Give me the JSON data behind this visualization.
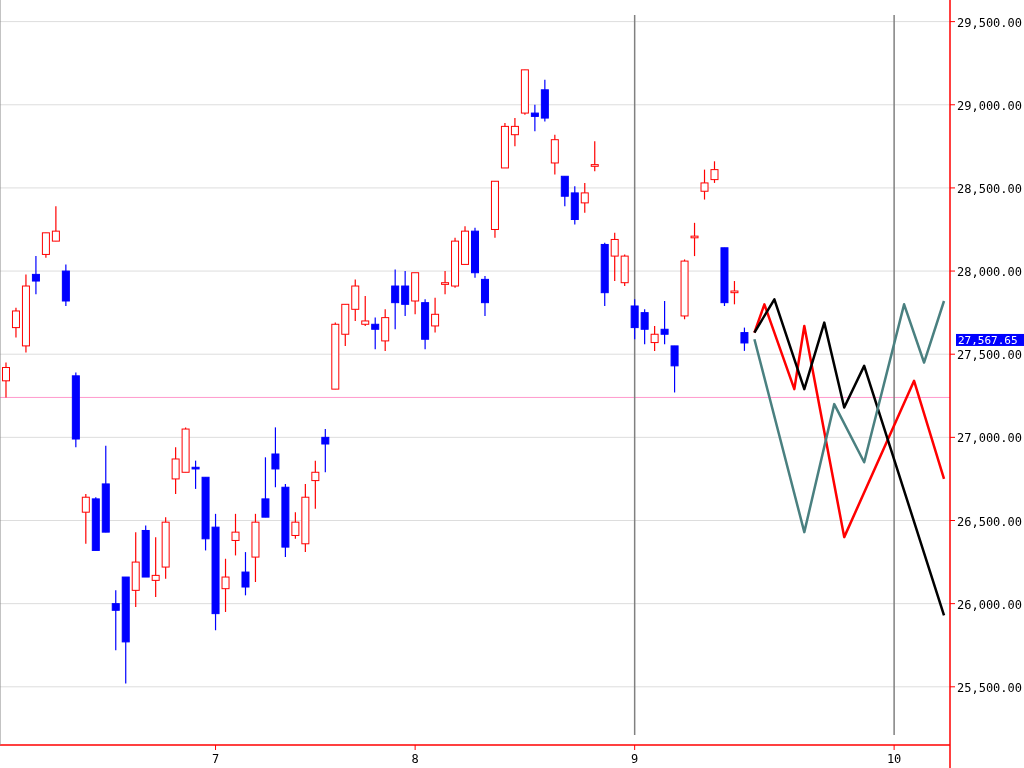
{
  "chart_data": {
    "type": "candlestick",
    "categories": [
      null,
      null,
      null,
      null,
      null,
      null,
      null,
      null,
      null,
      null,
      null,
      null,
      null,
      null,
      null,
      null,
      null,
      null,
      null,
      null,
      null,
      "7",
      null,
      null,
      null,
      null,
      null,
      null,
      null,
      null,
      null,
      null,
      null,
      null,
      null,
      null,
      null,
      null,
      null,
      null,
      null,
      "8",
      null,
      null,
      null,
      null,
      null,
      null,
      null,
      null,
      null,
      null,
      null,
      null,
      null,
      null,
      null,
      null,
      null,
      null,
      null,
      null,
      null,
      "9",
      null,
      null,
      null,
      null,
      null,
      null,
      null,
      null,
      null,
      null,
      null,
      null,
      null,
      null,
      null,
      null,
      null,
      null,
      null,
      null,
      null,
      null,
      null,
      null,
      null,
      "10",
      null,
      null,
      null,
      null,
      null
    ],
    "ohlc": [
      [
        27340,
        27450,
        27240,
        27420
      ],
      [
        27660,
        27780,
        27600,
        27760
      ],
      [
        27550,
        27980,
        27510,
        27910
      ],
      [
        27980,
        28090,
        27860,
        27940
      ],
      [
        28100,
        28230,
        28080,
        28230
      ],
      [
        28180,
        28390,
        28180,
        28240
      ],
      [
        28000,
        28040,
        27790,
        27820
      ],
      [
        27370,
        27390,
        26940,
        26990
      ],
      [
        26550,
        26660,
        26360,
        26640
      ],
      [
        26630,
        26640,
        26320,
        26320
      ],
      [
        26720,
        26950,
        26430,
        26430
      ],
      [
        26000,
        26080,
        25720,
        25960
      ],
      [
        26160,
        26160,
        25520,
        25770
      ],
      [
        26080,
        26430,
        25980,
        26250
      ],
      [
        26440,
        26470,
        26160,
        26160
      ],
      [
        26140,
        26400,
        26040,
        26170
      ],
      [
        26220,
        26520,
        26150,
        26490
      ],
      [
        26750,
        26940,
        26660,
        26870
      ],
      [
        26790,
        27060,
        26790,
        27050
      ],
      [
        26820,
        26860,
        26690,
        26810
      ],
      [
        26760,
        26760,
        26320,
        26390
      ],
      [
        26460,
        26540,
        25840,
        25940
      ],
      [
        26090,
        26270,
        25950,
        26160
      ],
      [
        26380,
        26540,
        26290,
        26430
      ],
      [
        26190,
        26310,
        26050,
        26100
      ],
      [
        26280,
        26540,
        26130,
        26490
      ],
      [
        26630,
        26880,
        26520,
        26520
      ],
      [
        26900,
        27060,
        26700,
        26810
      ],
      [
        26700,
        26720,
        26280,
        26340
      ],
      [
        26410,
        26550,
        26390,
        26490
      ],
      [
        26360,
        26720,
        26310,
        26640
      ],
      [
        26740,
        26860,
        26570,
        26790
      ],
      [
        27000,
        27050,
        26790,
        26960
      ],
      [
        27290,
        27690,
        27290,
        27680
      ],
      [
        27620,
        27800,
        27550,
        27800
      ],
      [
        27770,
        27950,
        27700,
        27910
      ],
      [
        27680,
        27850,
        27670,
        27700
      ],
      [
        27680,
        27720,
        27530,
        27650
      ],
      [
        27580,
        27770,
        27520,
        27720
      ],
      [
        27910,
        28010,
        27650,
        27810
      ],
      [
        27910,
        28000,
        27730,
        27800
      ],
      [
        27820,
        27990,
        27740,
        27990
      ],
      [
        27810,
        27830,
        27530,
        27590
      ],
      [
        27670,
        27840,
        27630,
        27740
      ],
      [
        27920,
        28000,
        27860,
        27930
      ],
      [
        27910,
        28200,
        27900,
        28180
      ],
      [
        28040,
        28270,
        28040,
        28240
      ],
      [
        28240,
        28260,
        27960,
        27990
      ],
      [
        27950,
        27970,
        27730,
        27810
      ],
      [
        28250,
        28540,
        28200,
        28540
      ],
      [
        28620,
        28890,
        28620,
        28870
      ],
      [
        28820,
        28920,
        28750,
        28870
      ],
      [
        28950,
        29210,
        28940,
        29210
      ],
      [
        28950,
        29000,
        28840,
        28930
      ],
      [
        29090,
        29150,
        28900,
        28920
      ],
      [
        28650,
        28820,
        28580,
        28790
      ],
      [
        28570,
        28570,
        28390,
        28450
      ],
      [
        28470,
        28510,
        28280,
        28310
      ],
      [
        28410,
        28530,
        28350,
        28470
      ],
      [
        28630,
        28780,
        28600,
        28640
      ],
      [
        28160,
        28170,
        27790,
        27870
      ],
      [
        28090,
        28230,
        27940,
        28190
      ],
      [
        27930,
        28100,
        27910,
        28090
      ],
      [
        27790,
        27830,
        27590,
        27660
      ],
      [
        27750,
        27770,
        27560,
        27650
      ],
      [
        27570,
        27670,
        27520,
        27620
      ],
      [
        27650,
        27820,
        27560,
        27620
      ],
      [
        27550,
        27550,
        27270,
        27430
      ],
      [
        27730,
        28070,
        27710,
        28060
      ],
      [
        28200,
        28290,
        28090,
        28210
      ],
      [
        28480,
        28610,
        28430,
        28530
      ],
      [
        28550,
        28660,
        28530,
        28610
      ],
      [
        28140,
        28140,
        27790,
        27810
      ],
      [
        27870,
        27940,
        27800,
        27880
      ],
      [
        27630,
        27660,
        27520,
        27567.65
      ],
      null,
      null,
      null,
      null,
      null,
      null,
      null,
      null,
      null,
      null,
      null,
      null,
      null,
      null,
      null,
      null,
      null,
      null,
      null,
      null
    ],
    "series": [
      {
        "type": "line",
        "color": "#ff0000",
        "values": [
          null,
          null,
          null,
          null,
          null,
          null,
          null,
          null,
          null,
          null,
          null,
          null,
          null,
          null,
          null,
          null,
          null,
          null,
          null,
          null,
          null,
          null,
          null,
          null,
          null,
          null,
          null,
          null,
          null,
          null,
          null,
          null,
          null,
          null,
          null,
          null,
          null,
          null,
          null,
          null,
          null,
          null,
          null,
          null,
          null,
          null,
          null,
          null,
          null,
          null,
          null,
          null,
          null,
          null,
          null,
          null,
          null,
          null,
          null,
          null,
          null,
          null,
          null,
          null,
          null,
          null,
          null,
          null,
          null,
          null,
          null,
          null,
          null,
          null,
          null,
          27630,
          27800,
          null,
          null,
          27290,
          27670,
          null,
          null,
          null,
          26400,
          null,
          null,
          null,
          null,
          null,
          null,
          27340,
          null,
          null,
          26750
        ]
      },
      {
        "type": "line",
        "color": "#000000",
        "values": [
          null,
          null,
          null,
          null,
          null,
          null,
          null,
          null,
          null,
          null,
          null,
          null,
          null,
          null,
          null,
          null,
          null,
          null,
          null,
          null,
          null,
          null,
          null,
          null,
          null,
          null,
          null,
          null,
          null,
          null,
          null,
          null,
          null,
          null,
          null,
          null,
          null,
          null,
          null,
          null,
          null,
          null,
          null,
          null,
          null,
          null,
          null,
          null,
          null,
          null,
          null,
          null,
          null,
          null,
          null,
          null,
          null,
          null,
          null,
          null,
          null,
          null,
          null,
          null,
          null,
          null,
          null,
          null,
          null,
          null,
          null,
          null,
          null,
          null,
          null,
          27630,
          null,
          27830,
          null,
          null,
          27290,
          null,
          27690,
          null,
          27180,
          null,
          27430,
          null,
          null,
          null,
          null,
          null,
          null,
          null,
          25930
        ]
      },
      {
        "type": "line",
        "color": "#4a8080",
        "values": [
          null,
          null,
          null,
          null,
          null,
          null,
          null,
          null,
          null,
          null,
          null,
          null,
          null,
          null,
          null,
          null,
          null,
          null,
          null,
          null,
          null,
          null,
          null,
          null,
          null,
          null,
          null,
          null,
          null,
          null,
          null,
          null,
          null,
          null,
          null,
          null,
          null,
          null,
          null,
          null,
          null,
          null,
          null,
          null,
          null,
          null,
          null,
          null,
          null,
          null,
          null,
          null,
          null,
          null,
          null,
          null,
          null,
          null,
          null,
          null,
          null,
          null,
          null,
          null,
          null,
          null,
          null,
          null,
          null,
          null,
          null,
          null,
          null,
          null,
          null,
          27590,
          null,
          null,
          null,
          null,
          26430,
          null,
          null,
          27200,
          null,
          null,
          26850,
          null,
          null,
          null,
          27800,
          null,
          27450,
          null,
          27820
        ]
      }
    ],
    "ylim": [
      25150,
      29630
    ],
    "yticks": [
      {
        "value": 25500,
        "label": "25,500.00"
      },
      {
        "value": 26000,
        "label": "26,000.00"
      },
      {
        "value": 26500,
        "label": "26,500.00"
      },
      {
        "value": 27000,
        "label": "27,000.00"
      },
      {
        "value": 27500,
        "label": "27,500.00"
      },
      {
        "value": 28000,
        "label": "28,000.00"
      },
      {
        "value": 28500,
        "label": "28,500.00"
      },
      {
        "value": 29000,
        "label": "29,000.00"
      },
      {
        "value": 29500,
        "label": "29,500.00"
      }
    ],
    "grid": "y",
    "ref_lines": [
      {
        "axis": "y",
        "value": 27240,
        "color": "#ff99cc"
      },
      {
        "axis": "x",
        "value": "9",
        "color": "#808080"
      },
      {
        "axis": "x",
        "value": "10",
        "color": "#808080"
      }
    ],
    "annotations": [
      "27,567.65"
    ]
  }
}
